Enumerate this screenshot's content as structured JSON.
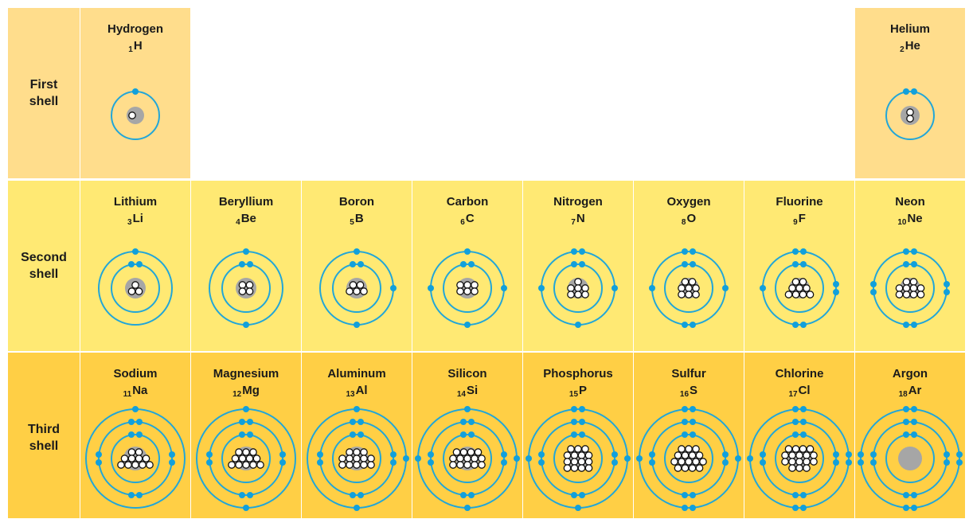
{
  "colors": {
    "row1": "#ffdd8c",
    "row2": "#ffe973",
    "row3": "#ffcf45",
    "orbit": "#22a6d8",
    "electron": "#11a0dc",
    "nucleus": "#a6a6a6"
  },
  "shells": [
    {
      "label": "First\nshell"
    },
    {
      "label": "Second\nshell"
    },
    {
      "label": "Third\nshell"
    }
  ],
  "elements": [
    {
      "name": "Hydrogen",
      "number": "1",
      "symbol": "H",
      "row": 0,
      "col": 0
    },
    {
      "name": "Helium",
      "number": "2",
      "symbol": "He",
      "row": 0,
      "col": 7
    },
    {
      "name": "Lithium",
      "number": "3",
      "symbol": "Li",
      "row": 1,
      "col": 0
    },
    {
      "name": "Beryllium",
      "number": "4",
      "symbol": "Be",
      "row": 1,
      "col": 1
    },
    {
      "name": "Boron",
      "number": "5",
      "symbol": "B",
      "row": 1,
      "col": 2
    },
    {
      "name": "Carbon",
      "number": "6",
      "symbol": "C",
      "row": 1,
      "col": 3
    },
    {
      "name": "Nitrogen",
      "number": "7",
      "symbol": "N",
      "row": 1,
      "col": 4
    },
    {
      "name": "Oxygen",
      "number": "8",
      "symbol": "O",
      "row": 1,
      "col": 5
    },
    {
      "name": "Fluorine",
      "number": "9",
      "symbol": "F",
      "row": 1,
      "col": 6
    },
    {
      "name": "Neon",
      "number": "10",
      "symbol": "Ne",
      "row": 1,
      "col": 7
    },
    {
      "name": "Sodium",
      "number": "11",
      "symbol": "Na",
      "row": 2,
      "col": 0
    },
    {
      "name": "Magnesium",
      "number": "12",
      "symbol": "Mg",
      "row": 2,
      "col": 1
    },
    {
      "name": "Aluminum",
      "number": "13",
      "symbol": "Al",
      "row": 2,
      "col": 2
    },
    {
      "name": "Silicon",
      "number": "14",
      "symbol": "Si",
      "row": 2,
      "col": 3
    },
    {
      "name": "Phosphorus",
      "number": "15",
      "symbol": "P",
      "row": 2,
      "col": 4
    },
    {
      "name": "Sulfur",
      "number": "16",
      "symbol": "S",
      "row": 2,
      "col": 5
    },
    {
      "name": "Chlorine",
      "number": "17",
      "symbol": "Cl",
      "row": 2,
      "col": 6
    },
    {
      "name": "Argon",
      "number": "18",
      "symbol": "Ar",
      "row": 2,
      "col": 7
    }
  ]
}
